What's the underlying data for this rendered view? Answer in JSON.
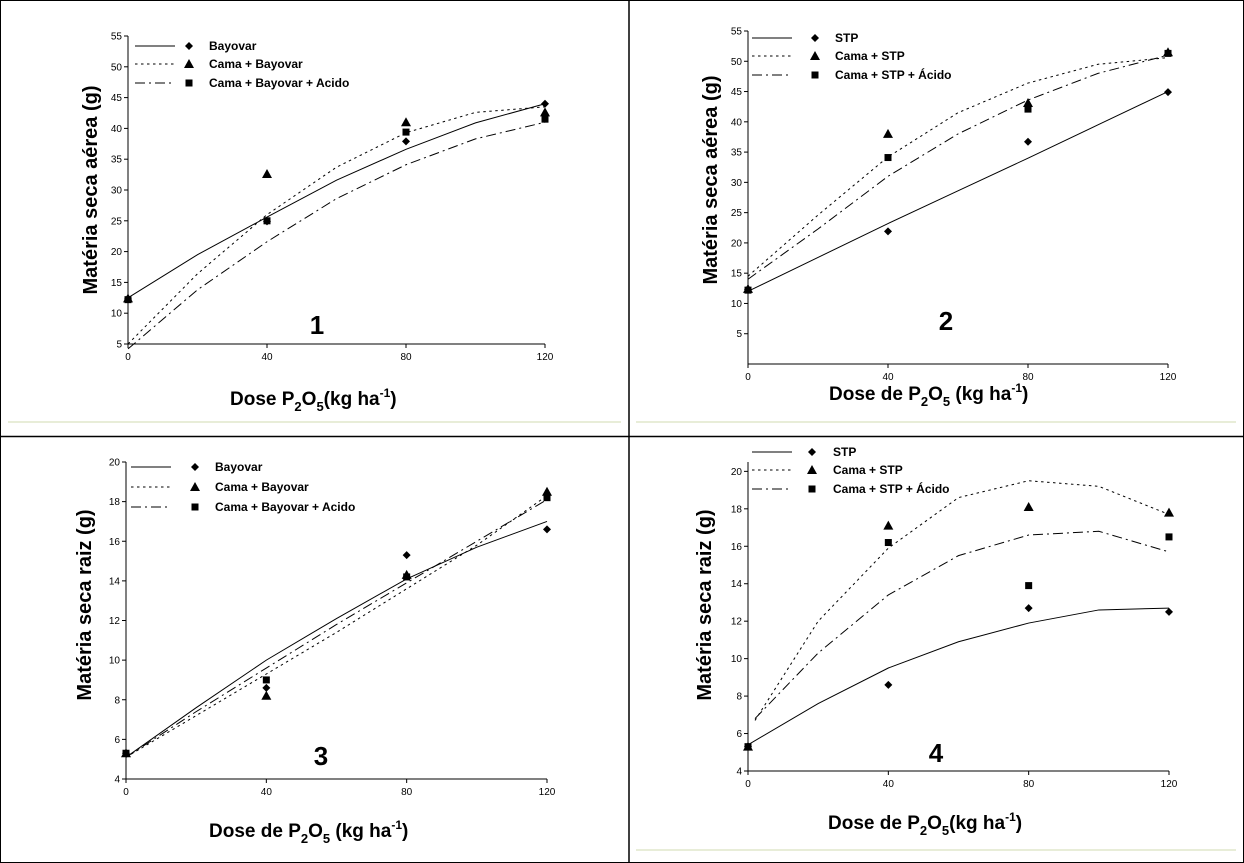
{
  "figure": {
    "title": "",
    "colors": {
      "ink": "#000000",
      "cell_border": "#000000",
      "cell_underline": "#e8edd8"
    }
  },
  "chart_data": [
    {
      "type": "scatter",
      "panel_label": "1",
      "ylabel": "Matéria seca aérea (g)",
      "xlabel": {
        "prefix": "Dose P",
        "sub1": "2",
        "mid": "O",
        "sub2": "5",
        "suffix": "(kg ha",
        "sup": "-1",
        "end": ")"
      },
      "xlim": [
        0,
        120
      ],
      "ylim": [
        5,
        55
      ],
      "xticks": [
        "0",
        "40",
        "80",
        "120"
      ],
      "yticks": [
        "5",
        "10",
        "15",
        "20",
        "25",
        "30",
        "35",
        "40",
        "45",
        "50",
        "55"
      ],
      "series": [
        {
          "name": "Bayovar",
          "marker": "circle",
          "line": "solid",
          "x": [
            0,
            40,
            80,
            120
          ],
          "y": [
            12.3,
            24.9,
            37.9,
            44.0
          ],
          "fit_x": [
            0,
            20,
            40,
            60,
            80,
            100,
            120
          ],
          "fit_y": [
            12.5,
            19.5,
            25.6,
            31.6,
            36.6,
            40.9,
            44.0
          ]
        },
        {
          "name": "Cama + Bayovar",
          "marker": "triangle",
          "line": "dotted",
          "x": [
            0,
            40,
            80,
            120
          ],
          "y": [
            12.4,
            32.6,
            41.0,
            42.6
          ],
          "fit_x": [
            0,
            20,
            40,
            60,
            80,
            100,
            120
          ],
          "fit_y": [
            5.0,
            16.4,
            26.0,
            33.7,
            39.3,
            42.6,
            43.5
          ]
        },
        {
          "name": "Cama + Bayovar + Acido",
          "marker": "square",
          "line": "dashdot",
          "x": [
            0,
            40,
            80,
            120
          ],
          "y": [
            12.2,
            25.0,
            39.4,
            41.5
          ],
          "fit_x": [
            0,
            20,
            40,
            60,
            80,
            100,
            120
          ],
          "fit_y": [
            4.2,
            13.8,
            21.6,
            28.6,
            34.1,
            38.3,
            41.0
          ]
        }
      ]
    },
    {
      "type": "scatter",
      "panel_label": "2",
      "ylabel": "Matéria seca aérea (g)",
      "xlabel": {
        "prefix": "Dose de P",
        "sub1": "2",
        "mid": "O",
        "sub2": "5",
        "suffix": " (kg ha",
        "sup": "-1",
        "end": ")"
      },
      "xlim": [
        0,
        120
      ],
      "ylim": [
        0,
        55
      ],
      "xticks": [
        "0",
        "40",
        "80",
        "120"
      ],
      "yticks": [
        "5",
        "10",
        "15",
        "20",
        "25",
        "30",
        "35",
        "40",
        "45",
        "50",
        "55"
      ],
      "series": [
        {
          "name": "STP",
          "marker": "circle",
          "line": "solid",
          "x": [
            0,
            40,
            80,
            120
          ],
          "y": [
            12.3,
            21.9,
            36.7,
            44.9
          ],
          "fit_x": [
            0,
            20,
            40,
            60,
            80,
            100,
            120
          ],
          "fit_y": [
            12.0,
            17.6,
            23.2,
            28.6,
            34.0,
            39.5,
            45.0
          ]
        },
        {
          "name": "Cama + STP",
          "marker": "triangle",
          "line": "dotted",
          "x": [
            0,
            40,
            80,
            120
          ],
          "y": [
            12.4,
            38.0,
            43.1,
            51.5
          ],
          "fit_x": [
            0,
            20,
            40,
            60,
            80,
            100,
            120
          ],
          "fit_y": [
            14.5,
            24.6,
            34.2,
            41.5,
            46.4,
            49.5,
            50.6
          ]
        },
        {
          "name": "Cama + STP + Ácido",
          "marker": "square",
          "line": "dashdot",
          "x": [
            0,
            40,
            80,
            120
          ],
          "y": [
            12.2,
            34.1,
            42.1,
            51.3
          ],
          "fit_x": [
            0,
            20,
            40,
            60,
            80,
            100,
            120
          ],
          "fit_y": [
            14.0,
            22.3,
            31.0,
            38.0,
            43.6,
            48.0,
            51.0
          ]
        }
      ]
    },
    {
      "type": "scatter",
      "panel_label": "3",
      "ylabel": "Matéria seca raiz (g)",
      "xlabel": {
        "prefix": "Dose de P",
        "sub1": "2",
        "mid": "O",
        "sub2": "5",
        "suffix": " (kg ha",
        "sup": "-1",
        "end": ")"
      },
      "xlim": [
        0,
        120
      ],
      "ylim": [
        4,
        20
      ],
      "xticks": [
        "0",
        "40",
        "80",
        "120"
      ],
      "yticks": [
        "4",
        "6",
        "8",
        "10",
        "12",
        "14",
        "16",
        "18",
        "20"
      ],
      "series": [
        {
          "name": "Bayovar",
          "marker": "circle",
          "line": "solid",
          "x": [
            0,
            40,
            80,
            120
          ],
          "y": [
            5.3,
            8.6,
            15.3,
            16.6
          ],
          "fit_x": [
            0,
            20,
            40,
            60,
            80,
            100,
            120
          ],
          "fit_y": [
            5.1,
            7.6,
            10.0,
            12.1,
            14.1,
            15.7,
            17.0
          ]
        },
        {
          "name": "Cama + Bayovar",
          "marker": "triangle",
          "line": "dotted",
          "x": [
            0,
            40,
            80,
            120
          ],
          "y": [
            5.3,
            8.2,
            14.3,
            18.5
          ],
          "fit_x": [
            0,
            20,
            40,
            60,
            80,
            100,
            120
          ],
          "fit_y": [
            5.1,
            7.2,
            9.3,
            11.4,
            13.6,
            15.8,
            18.3
          ]
        },
        {
          "name": "Cama + Bayovar + Acido",
          "marker": "square",
          "line": "dashdot",
          "x": [
            0,
            40,
            80,
            120
          ],
          "y": [
            5.3,
            9.0,
            14.2,
            18.2
          ],
          "fit_x": [
            0,
            20,
            40,
            60,
            80,
            100,
            120
          ],
          "fit_y": [
            5.1,
            7.4,
            9.6,
            11.8,
            13.9,
            16.0,
            18.1
          ]
        }
      ]
    },
    {
      "type": "scatter",
      "panel_label": "4",
      "ylabel": "Matéria seca raiz (g)",
      "xlabel": {
        "prefix": "Dose de P",
        "sub1": "2",
        "mid": "O",
        "sub2": "5",
        "suffix": "(kg ha",
        "sup": "-1",
        "end": ")"
      },
      "xlim": [
        0,
        120
      ],
      "ylim": [
        4,
        20.5
      ],
      "xticks": [
        "0",
        "40",
        "80",
        "120"
      ],
      "yticks": [
        "4",
        "6",
        "8",
        "10",
        "12",
        "14",
        "16",
        "18",
        "20"
      ],
      "series": [
        {
          "name": "STP",
          "marker": "circle",
          "line": "solid",
          "x": [
            0,
            40,
            80,
            120
          ],
          "y": [
            5.3,
            8.6,
            12.7,
            12.5
          ],
          "fit_x": [
            0,
            20,
            40,
            60,
            80,
            100,
            120
          ],
          "fit_y": [
            5.4,
            7.6,
            9.5,
            10.9,
            11.9,
            12.6,
            12.7
          ]
        },
        {
          "name": "Cama + STP",
          "marker": "triangle",
          "line": "dotted",
          "x": [
            0,
            40,
            80,
            120
          ],
          "y": [
            5.3,
            17.1,
            18.1,
            17.8
          ],
          "fit_x": [
            2,
            20,
            40,
            60,
            80,
            100,
            120
          ],
          "fit_y": [
            6.7,
            12.0,
            15.9,
            18.6,
            19.5,
            19.2,
            17.7
          ]
        },
        {
          "name": "Cama + STP + Ácido",
          "marker": "square",
          "line": "dashdot",
          "x": [
            0,
            40,
            80,
            120
          ],
          "y": [
            5.3,
            16.2,
            13.9,
            16.5
          ],
          "fit_x": [
            2,
            20,
            40,
            60,
            80,
            100,
            120
          ],
          "fit_y": [
            6.8,
            10.3,
            13.4,
            15.5,
            16.6,
            16.8,
            15.7
          ]
        }
      ]
    }
  ]
}
